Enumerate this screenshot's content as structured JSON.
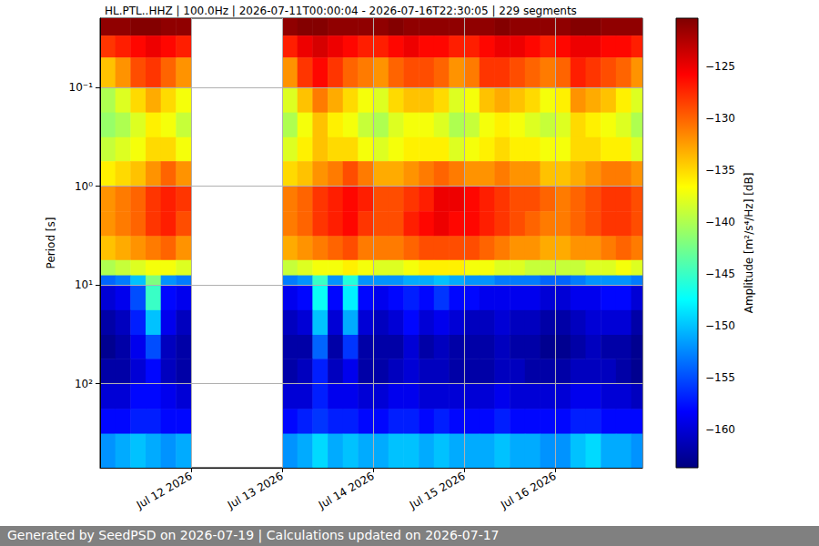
{
  "chart_data": {
    "type": "heatmap",
    "title": "HL.PTL..HHZ | 100.0Hz | 2026-07-11T00:00:04 - 2026-07-16T22:30:05 | 229 segments",
    "ylabel": "Period [s]",
    "footer": "Generated by SeedPSD on 2026-07-19 | Calculations updated on 2026-07-17",
    "log": "y",
    "grid": true,
    "xlim": [
      "2026-07-11T00:00",
      "2026-07-16T23:00"
    ],
    "xticks": [
      {
        "value": "2026-07-12T00:00",
        "label": "Jul 12 2026"
      },
      {
        "value": "2026-07-13T00:00",
        "label": "Jul 13 2026"
      },
      {
        "value": "2026-07-14T00:00",
        "label": "Jul 14 2026"
      },
      {
        "value": "2026-07-15T00:00",
        "label": "Jul 15 2026"
      },
      {
        "value": "2026-07-16T00:00",
        "label": "Jul 16 2026"
      }
    ],
    "ylim": [
      0.02,
      708
    ],
    "yticks": [
      {
        "value": 0.1,
        "label": "10⁻¹"
      },
      {
        "value": 1,
        "label": "10⁰"
      },
      {
        "value": 10,
        "label": "10¹"
      },
      {
        "value": 100,
        "label": "10²"
      }
    ],
    "x_bins": [
      "2026-07-11T00:00",
      "2026-07-11T04:00",
      "2026-07-11T08:00",
      "2026-07-11T12:00",
      "2026-07-11T16:00",
      "2026-07-11T20:00",
      "2026-07-12T00:00",
      "2026-07-12T04:00",
      "2026-07-12T08:00",
      "2026-07-12T12:00",
      "2026-07-12T16:00",
      "2026-07-12T20:00",
      "2026-07-13T00:00",
      "2026-07-13T04:00",
      "2026-07-13T08:00",
      "2026-07-13T12:00",
      "2026-07-13T16:00",
      "2026-07-13T20:00",
      "2026-07-14T00:00",
      "2026-07-14T04:00",
      "2026-07-14T08:00",
      "2026-07-14T12:00",
      "2026-07-14T16:00",
      "2026-07-14T20:00",
      "2026-07-15T00:00",
      "2026-07-15T04:00",
      "2026-07-15T08:00",
      "2026-07-15T12:00",
      "2026-07-15T16:00",
      "2026-07-15T20:00",
      "2026-07-16T00:00",
      "2026-07-16T04:00",
      "2026-07-16T08:00",
      "2026-07-16T12:00",
      "2026-07-16T16:00",
      "2026-07-16T20:00",
      "2026-07-17T00:00"
    ],
    "y_bins": [
      0.02,
      0.03,
      0.05,
      0.1,
      0.18,
      0.32,
      0.56,
      1,
      1.8,
      3.2,
      5.6,
      8,
      10,
      18,
      32,
      56,
      100,
      180,
      320,
      708
    ],
    "cells": [
      [
        -121,
        -121,
        -120.5,
        -120.5,
        -121,
        -121,
        null,
        null,
        null,
        null,
        null,
        null,
        -121,
        -120.5,
        -120.5,
        -121,
        -121,
        -121,
        -121,
        -120.5,
        -121,
        -121,
        -121,
        -121,
        -121,
        -121,
        -120.5,
        -121,
        -121,
        -121,
        -121,
        -120.5,
        -120.5,
        -121,
        -121,
        -121
      ],
      [
        -128,
        -127,
        -126,
        -125,
        -126,
        -127,
        null,
        null,
        null,
        null,
        null,
        null,
        -127,
        -125,
        -124,
        -125,
        -126,
        -127,
        -127,
        -126,
        -125,
        -126,
        -126,
        -127,
        -127,
        -126,
        -125,
        -125,
        -126,
        -127,
        -126,
        -125,
        -125,
        -126,
        -126,
        -127
      ],
      [
        -134,
        -132,
        -129,
        -128,
        -130,
        -132,
        null,
        null,
        null,
        null,
        null,
        null,
        -132,
        -128,
        -126,
        -128,
        -130,
        -131,
        -132,
        -130,
        -129,
        -129,
        -130,
        -132,
        -131,
        -128,
        -128,
        -129,
        -130,
        -131,
        -130,
        -127,
        -128,
        -129,
        -130,
        -132
      ],
      [
        -140,
        -138,
        -135,
        -133,
        -135,
        -137,
        null,
        null,
        null,
        null,
        null,
        null,
        -138,
        -134,
        -131,
        -133,
        -135,
        -137,
        -138,
        -135,
        -134,
        -134,
        -135,
        -138,
        -137,
        -134,
        -133,
        -134,
        -135,
        -137,
        -136,
        -132,
        -133,
        -134,
        -136,
        -138
      ],
      [
        -141,
        -140,
        -138,
        -136,
        -137,
        -139,
        null,
        null,
        null,
        null,
        null,
        null,
        -140,
        -137,
        -134,
        -136,
        -137,
        -139,
        -140,
        -138,
        -137,
        -137,
        -138,
        -140,
        -139,
        -137,
        -136,
        -137,
        -138,
        -139,
        -138,
        -135,
        -136,
        -137,
        -138,
        -140
      ],
      [
        -139,
        -138,
        -137,
        -135,
        -135,
        -137,
        null,
        null,
        null,
        null,
        null,
        null,
        -138,
        -136,
        -134,
        -135,
        -135,
        -137,
        -138,
        -137,
        -136,
        -136,
        -136,
        -138,
        -137,
        -136,
        -135,
        -136,
        -136,
        -137,
        -137,
        -135,
        -135,
        -136,
        -136,
        -138
      ],
      [
        -136,
        -135,
        -134,
        -132,
        -130,
        -132,
        null,
        null,
        null,
        null,
        null,
        null,
        -135,
        -134,
        -132,
        -131,
        -129,
        -131,
        -133,
        -133,
        -132,
        -131,
        -130,
        -131,
        -132,
        -132,
        -131,
        -132,
        -132,
        -134,
        -134,
        -133,
        -132,
        -131,
        -131,
        -132
      ],
      [
        -132,
        -131,
        -130,
        -128,
        -127,
        -128,
        null,
        null,
        null,
        null,
        null,
        null,
        -131,
        -130,
        -128,
        -127,
        -126,
        -127,
        -129,
        -129,
        -128,
        -127,
        -125,
        -125,
        -126,
        -127,
        -128,
        -129,
        -129,
        -130,
        -131,
        -130,
        -129,
        -128,
        -128,
        -129
      ],
      [
        -132,
        -131,
        -130,
        -128,
        -127,
        -129,
        null,
        null,
        null,
        null,
        null,
        null,
        -131,
        -130,
        -128,
        -127,
        -126,
        -128,
        -129,
        -129,
        -127,
        -126,
        -125,
        -126,
        -126,
        -127,
        -128,
        -129,
        -130,
        -131,
        -131,
        -130,
        -129,
        -128,
        -128,
        -129
      ],
      [
        -134,
        -133,
        -132,
        -131,
        -130,
        -132,
        null,
        null,
        null,
        null,
        null,
        null,
        -133,
        -132,
        -131,
        -130,
        -129,
        -131,
        -131,
        -131,
        -130,
        -129,
        -129,
        -129,
        -129,
        -130,
        -131,
        -132,
        -132,
        -133,
        -133,
        -132,
        -132,
        -131,
        -130,
        -131
      ],
      [
        -140,
        -139,
        -138,
        -137,
        -137,
        -138,
        null,
        null,
        null,
        null,
        null,
        null,
        -139,
        -138,
        -137,
        -137,
        -136,
        -137,
        -138,
        -138,
        -137,
        -136,
        -136,
        -136,
        -137,
        -137,
        -138,
        -138,
        -139,
        -139,
        -139,
        -139,
        -138,
        -138,
        -137,
        -138
      ],
      [
        -154,
        -153,
        -150,
        -142,
        -152,
        -153,
        null,
        null,
        null,
        null,
        null,
        null,
        -153,
        -152,
        -145,
        -152,
        -146,
        -152,
        -152,
        -152,
        -151,
        -151,
        -150,
        -151,
        -152,
        -152,
        -153,
        -153,
        -153,
        -154,
        -154,
        -153,
        -152,
        -152,
        -152,
        -153
      ],
      [
        -160,
        -159,
        -155,
        -145,
        -158,
        -159,
        null,
        null,
        null,
        null,
        null,
        null,
        -159,
        -158,
        -147,
        -158,
        -148,
        -158,
        -159,
        -158,
        -157,
        -158,
        -156,
        -158,
        -158,
        -159,
        -159,
        -159,
        -159,
        -160,
        -160,
        -159,
        -159,
        -158,
        -158,
        -160
      ],
      [
        -162,
        -161,
        -157,
        -150,
        -159,
        -161,
        null,
        null,
        null,
        null,
        null,
        null,
        -161,
        -160,
        -150,
        -160,
        -151,
        -160,
        -161,
        -160,
        -158,
        -160,
        -159,
        -160,
        -161,
        -161,
        -160,
        -161,
        -161,
        -162,
        -162,
        -161,
        -160,
        -160,
        -160,
        -162
      ],
      [
        -163,
        -162,
        -159,
        -155,
        -161,
        -162,
        null,
        null,
        null,
        null,
        null,
        null,
        -162,
        -162,
        -154,
        -162,
        -156,
        -162,
        -162,
        -162,
        -160,
        -162,
        -161,
        -162,
        -162,
        -162,
        -161,
        -162,
        -162,
        -163,
        -163,
        -162,
        -161,
        -162,
        -162,
        -163
      ],
      [
        -162,
        -162,
        -160,
        -158,
        -161,
        -162,
        null,
        null,
        null,
        null,
        null,
        null,
        -162,
        -161,
        -157,
        -161,
        -159,
        -162,
        -162,
        -161,
        -160,
        -161,
        -161,
        -162,
        -162,
        -162,
        -161,
        -161,
        -162,
        -162,
        -162,
        -161,
        -161,
        -161,
        -162,
        -163
      ],
      [
        -160,
        -160,
        -158,
        -158,
        -159,
        -160,
        null,
        null,
        null,
        null,
        null,
        null,
        -160,
        -160,
        -157,
        -159,
        -159,
        -160,
        -160,
        -159,
        -159,
        -160,
        -160,
        -160,
        -160,
        -160,
        -159,
        -160,
        -160,
        -160,
        -160,
        -159,
        -159,
        -160,
        -160,
        -161
      ],
      [
        -158,
        -158,
        -157,
        -157,
        -158,
        -158,
        null,
        null,
        null,
        null,
        null,
        null,
        -158,
        -157,
        -156,
        -157,
        -157,
        -158,
        -158,
        -157,
        -157,
        -158,
        -157,
        -158,
        -158,
        -158,
        -157,
        -158,
        -158,
        -158,
        -158,
        -157,
        -157,
        -158,
        -158,
        -158
      ],
      [
        -152,
        -151,
        -150,
        -151,
        -152,
        -151,
        null,
        null,
        null,
        null,
        null,
        null,
        -152,
        -151,
        -149,
        -151,
        -150,
        -151,
        -151,
        -150,
        -150,
        -151,
        -150,
        -151,
        -151,
        -151,
        -150,
        -151,
        -151,
        -152,
        -152,
        -150,
        -149,
        -151,
        -151,
        -152
      ]
    ],
    "colorbar": {
      "label": "Amplitude [m²/s⁴/Hz] [dB]",
      "range": [
        -163.7,
        -120.3
      ],
      "ticks": [
        {
          "value": -125,
          "label": "−125"
        },
        {
          "value": -130,
          "label": "−130"
        },
        {
          "value": -135,
          "label": "−135"
        },
        {
          "value": -140,
          "label": "−140"
        },
        {
          "value": -145,
          "label": "−145"
        },
        {
          "value": -150,
          "label": "−150"
        },
        {
          "value": -155,
          "label": "−155"
        },
        {
          "value": -160,
          "label": "−160"
        }
      ]
    }
  }
}
